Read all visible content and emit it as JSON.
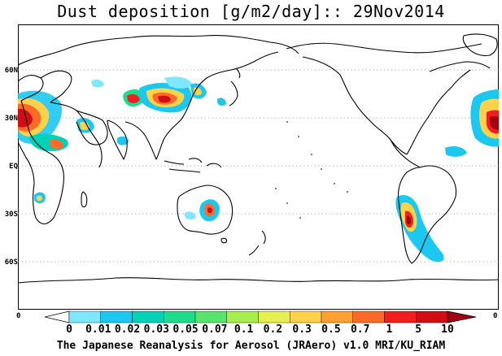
{
  "title": "Dust deposition [g/m2/day]:: 29Nov2014",
  "lat_labels": [
    "60N",
    "30N",
    "EQ",
    "30S",
    "60S"
  ],
  "edge_left": "0",
  "edge_right": "0",
  "colorbar": {
    "ticks": [
      "0",
      "0.01",
      "0.02",
      "0.03",
      "0.05",
      "0.07",
      "0.1",
      "0.2",
      "0.3",
      "0.5",
      "0.7",
      "1",
      "5",
      "10"
    ],
    "colors": [
      "#ffffff",
      "#7fe8ff",
      "#1cc8ee",
      "#00d2b8",
      "#1edc8c",
      "#58e46e",
      "#a8ee4c",
      "#e8f050",
      "#ffd24a",
      "#ffa032",
      "#ff6a28",
      "#f01e1e",
      "#d00c14",
      "#a00010"
    ]
  },
  "credit": "The Japanese Reanalysis for Aerosol (JRAero) v1.0 MRI/KU_RIAM"
}
